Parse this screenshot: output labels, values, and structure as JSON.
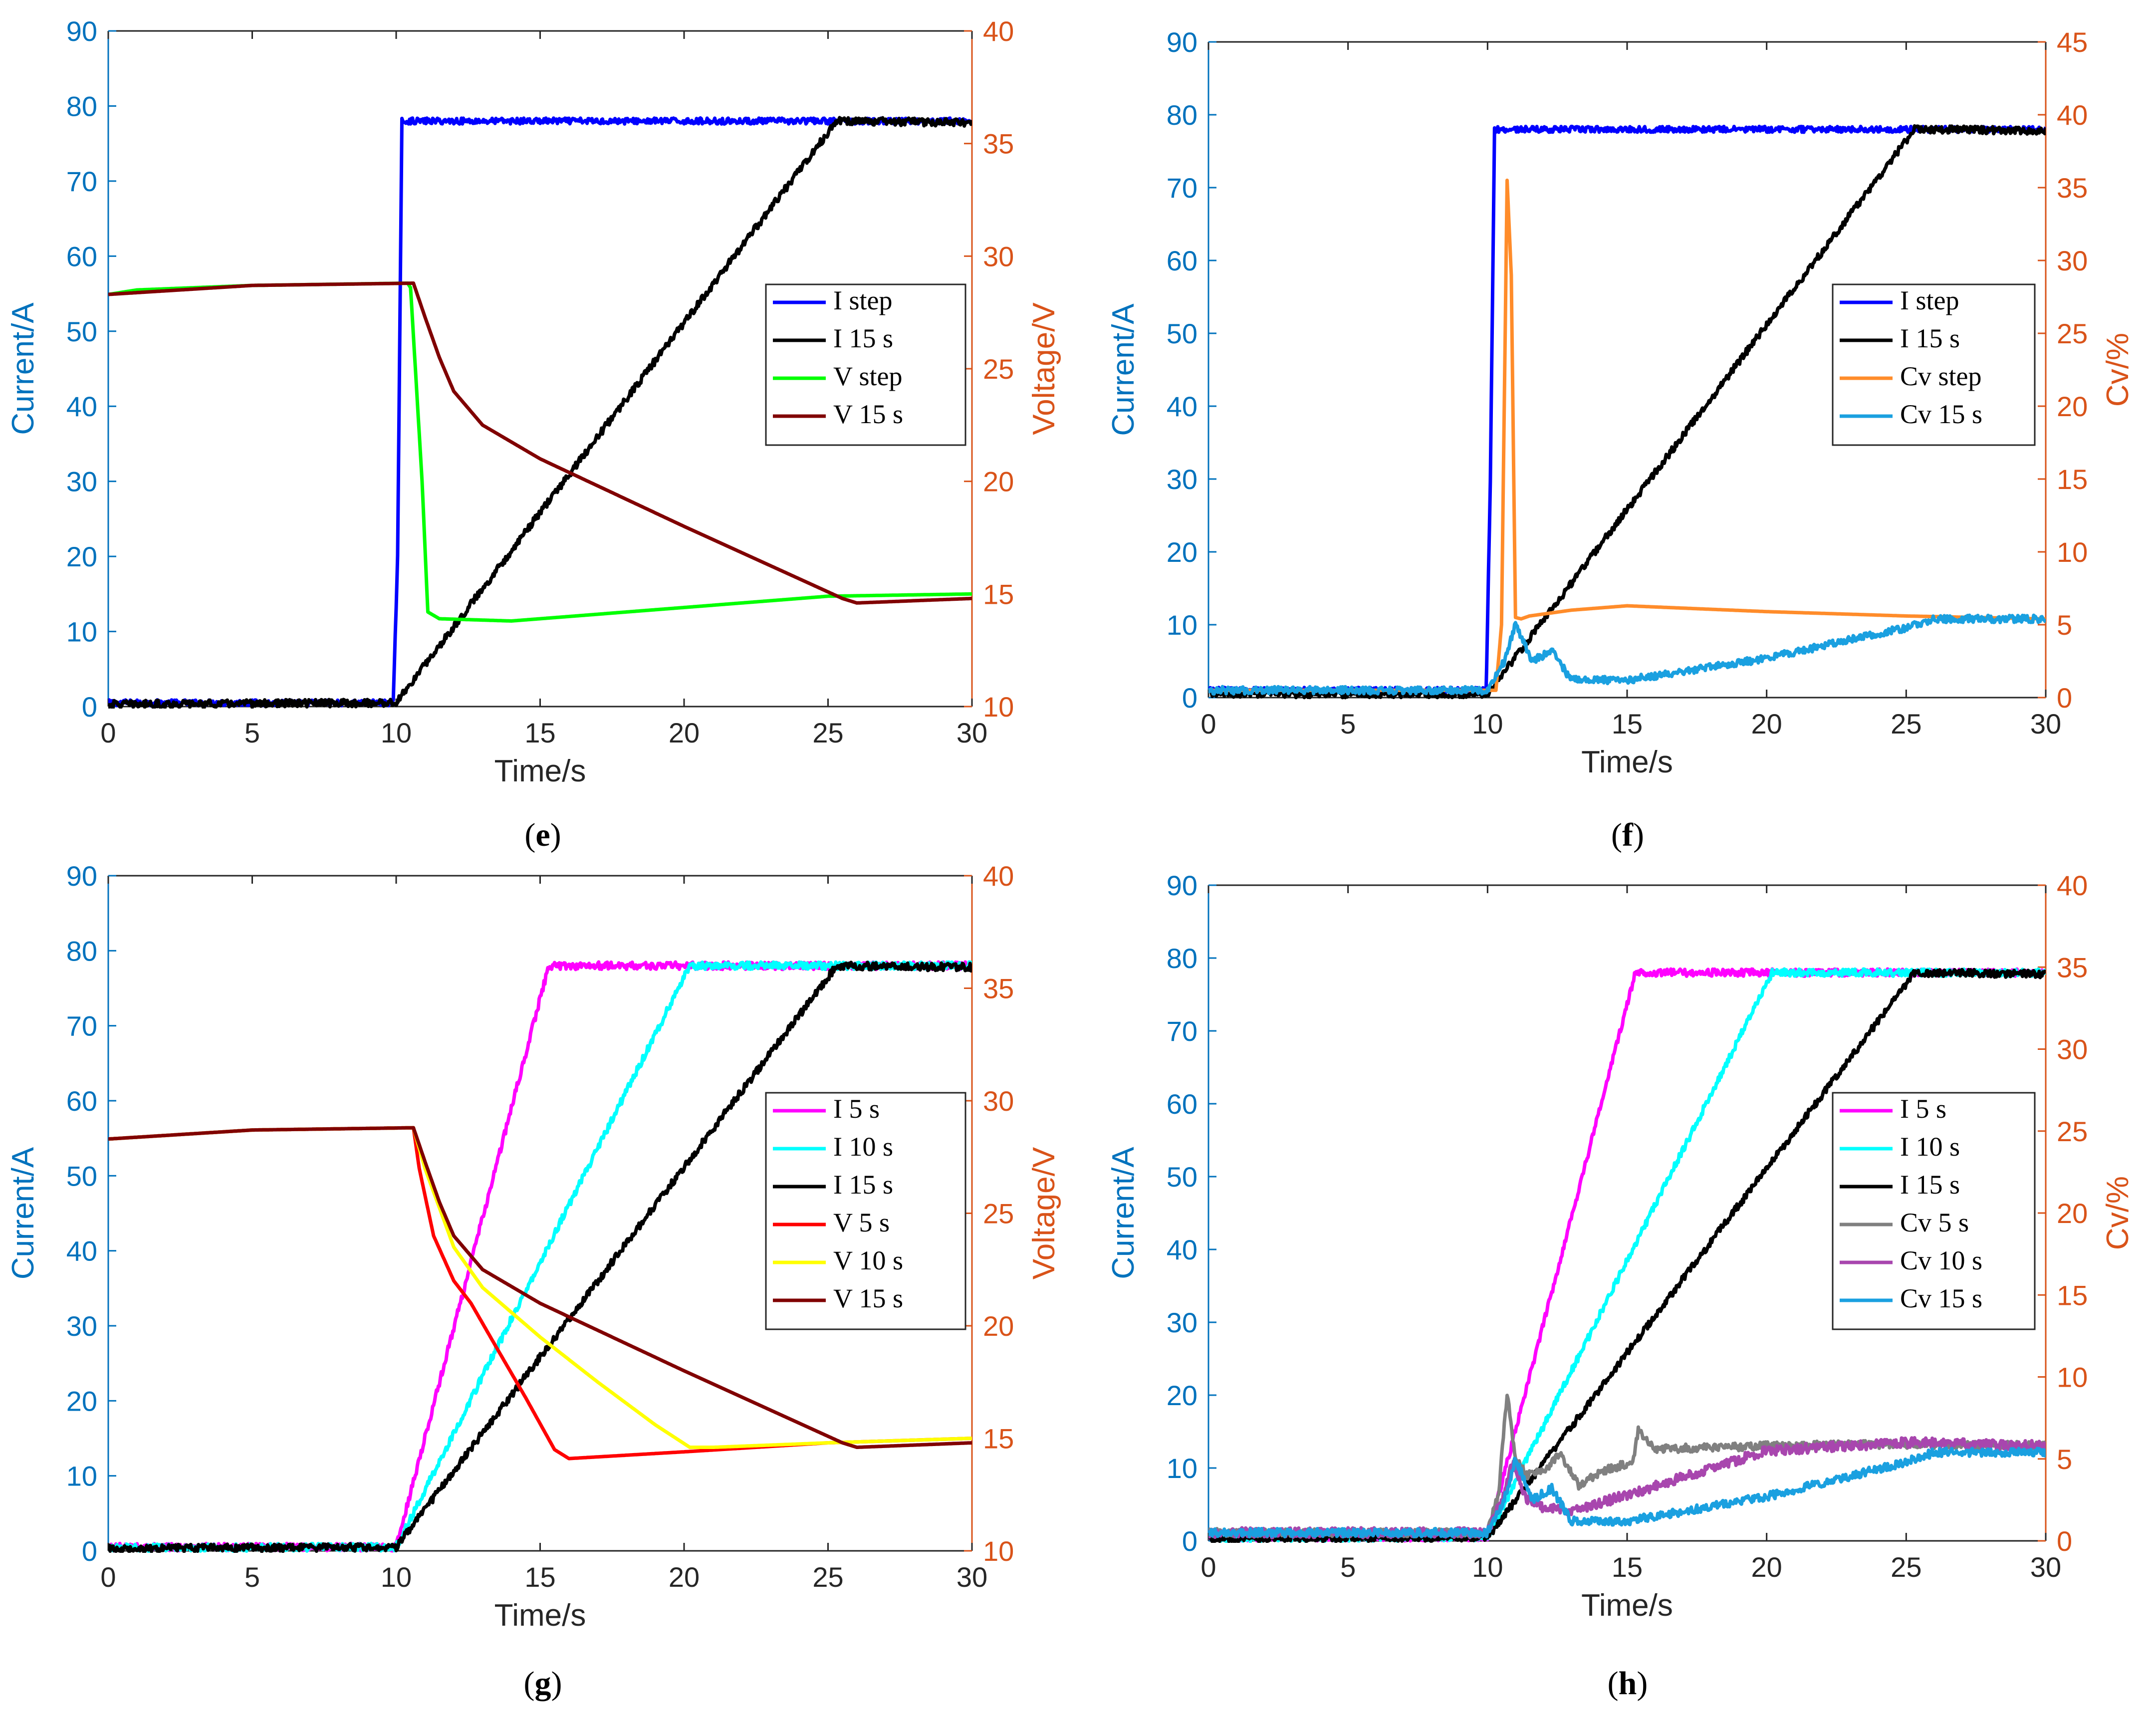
{
  "colors": {
    "left_axis": "#0072BD",
    "right_axis": "#D95319",
    "I_step": "#0000FF",
    "I_5s": "#FF00FF",
    "I_10s": "#00FFFF",
    "I_15s": "#000000",
    "V_step": "#00FF00",
    "V_5s": "#FF0000",
    "V_10s": "#FFFF00",
    "V_15s": "#800000",
    "Cv_step": "#FF8C2A",
    "Cv_5s": "#808080",
    "Cv_10s": "#A846AE",
    "Cv_15s": "#1AA0E0"
  },
  "chart_data": [
    {
      "id": "e",
      "type": "line",
      "panel_label": "e",
      "xlabel": "Time/s",
      "ylabel_left": "Current/A",
      "ylabel_right": "Voltage/V",
      "xlim": [
        0,
        30
      ],
      "ylim_left": [
        0,
        90
      ],
      "ylim_right": [
        10,
        40
      ],
      "xticks": [
        "0",
        "5",
        "10",
        "15",
        "20",
        "25",
        "30"
      ],
      "yticks_left": [
        "0",
        "10",
        "20",
        "30",
        "40",
        "50",
        "60",
        "70",
        "80",
        "90"
      ],
      "yticks_right": [
        "10",
        "15",
        "20",
        "25",
        "30",
        "35",
        "40"
      ],
      "series": [
        {
          "name": "I step",
          "axis": "left",
          "color_key": "I_step",
          "noise": 0.4,
          "x": [
            0,
            9.9,
            10.05,
            10.2,
            30
          ],
          "y": [
            0.5,
            0.5,
            20,
            78,
            78
          ]
        },
        {
          "name": "I 15 s",
          "axis": "left",
          "color_key": "I_15s",
          "noise": 0.5,
          "x": [
            0,
            10,
            25.3,
            30
          ],
          "y": [
            0.3,
            0.5,
            78,
            77.8
          ]
        },
        {
          "name": "V step",
          "axis": "right",
          "color_key": "V_step",
          "noise": 0,
          "x": [
            0,
            1,
            5,
            10.4,
            10.5,
            10.9,
            11.1,
            11.5,
            14,
            20,
            25,
            30
          ],
          "y": [
            28.3,
            28.5,
            28.7,
            28.8,
            28.6,
            20,
            14.2,
            13.9,
            13.8,
            14.4,
            14.9,
            15
          ]
        },
        {
          "name": "V 15 s",
          "axis": "right",
          "color_key": "V_15s",
          "noise": 0,
          "x": [
            0,
            5,
            10.6,
            11,
            11.5,
            12,
            13,
            15,
            20,
            25.5,
            26,
            30
          ],
          "y": [
            28.3,
            28.7,
            28.8,
            27.3,
            25.5,
            24,
            22.5,
            21,
            18,
            14.8,
            14.6,
            14.8
          ]
        }
      ]
    },
    {
      "id": "f",
      "type": "line",
      "panel_label": "f",
      "xlabel": "Time/s",
      "ylabel_left": "Current/A",
      "ylabel_right": "Cv/%",
      "xlim": [
        0,
        30
      ],
      "ylim_left": [
        0,
        90
      ],
      "ylim_right": [
        0,
        45
      ],
      "xticks": [
        "0",
        "5",
        "10",
        "15",
        "20",
        "25",
        "30"
      ],
      "yticks_left": [
        "0",
        "10",
        "20",
        "30",
        "40",
        "50",
        "60",
        "70",
        "80",
        "90"
      ],
      "yticks_right": [
        "0",
        "5",
        "10",
        "15",
        "20",
        "25",
        "30",
        "35",
        "40",
        "45"
      ],
      "series": [
        {
          "name": "I step",
          "axis": "left",
          "color_key": "I_step",
          "noise": 0.4,
          "x": [
            0,
            9.95,
            10.1,
            10.25,
            30
          ],
          "y": [
            1,
            1,
            30,
            78,
            78
          ]
        },
        {
          "name": "I 15 s",
          "axis": "left",
          "color_key": "I_15s",
          "noise": 0.5,
          "x": [
            0,
            10,
            25.3,
            30
          ],
          "y": [
            0.5,
            0.5,
            78,
            77.8
          ]
        },
        {
          "name": "Cv step",
          "axis": "right",
          "color_key": "Cv_step",
          "noise": 0,
          "x": [
            0,
            10.3,
            10.5,
            10.7,
            10.85,
            11,
            11.2,
            11.5,
            13,
            15,
            20,
            25,
            30
          ],
          "y": [
            0.5,
            0.5,
            5,
            35.5,
            29,
            5.5,
            5.4,
            5.6,
            6,
            6.3,
            5.9,
            5.6,
            5.4
          ]
        },
        {
          "name": "Cv 15 s",
          "axis": "right",
          "color_key": "Cv_15s",
          "noise": 0.25,
          "x": [
            0,
            10,
            10.6,
            11,
            11.6,
            12.3,
            13,
            15,
            20,
            25,
            26,
            30
          ],
          "y": [
            0.5,
            0.5,
            2.5,
            5,
            2.5,
            3.2,
            1.2,
            1.2,
            2.7,
            4.8,
            5.4,
            5.4
          ]
        }
      ]
    },
    {
      "id": "g",
      "type": "line",
      "panel_label": "g",
      "xlabel": "Time/s",
      "ylabel_left": "Current/A",
      "ylabel_right": "Voltage/V",
      "xlim": [
        0,
        30
      ],
      "ylim_left": [
        0,
        90
      ],
      "ylim_right": [
        10,
        40
      ],
      "xticks": [
        "0",
        "5",
        "10",
        "15",
        "20",
        "25",
        "30"
      ],
      "yticks_left": [
        "0",
        "10",
        "20",
        "30",
        "40",
        "50",
        "60",
        "70",
        "80",
        "90"
      ],
      "yticks_right": [
        "10",
        "15",
        "20",
        "25",
        "30",
        "35",
        "40"
      ],
      "series": [
        {
          "name": "I 5 s",
          "axis": "left",
          "color_key": "I_5s",
          "noise": 0.5,
          "x": [
            0,
            10,
            15.3,
            30
          ],
          "y": [
            0.5,
            0.5,
            78,
            78
          ]
        },
        {
          "name": "I 10 s",
          "axis": "left",
          "color_key": "I_10s",
          "noise": 0.5,
          "x": [
            0,
            10,
            20.2,
            30
          ],
          "y": [
            0.4,
            0.5,
            78,
            78
          ]
        },
        {
          "name": "I 15 s",
          "axis": "left",
          "color_key": "I_15s",
          "noise": 0.5,
          "x": [
            0,
            10,
            25.3,
            30
          ],
          "y": [
            0.3,
            0.5,
            78,
            77.8
          ]
        },
        {
          "name": "V 5 s",
          "axis": "right",
          "color_key": "V_5s",
          "noise": 0,
          "x": [
            0,
            5,
            10.6,
            10.8,
            11.3,
            12,
            12.6,
            13.5,
            14.5,
            15.5,
            16,
            20,
            25,
            30
          ],
          "y": [
            28.3,
            28.7,
            28.8,
            27,
            24,
            22,
            21,
            19,
            16.8,
            14.5,
            14.1,
            14.4,
            14.8,
            15
          ]
        },
        {
          "name": "V 10 s",
          "axis": "right",
          "color_key": "V_10s",
          "noise": 0,
          "x": [
            0,
            5,
            10.6,
            11,
            12,
            13,
            15,
            17,
            19,
            20.2,
            21,
            25,
            30
          ],
          "y": [
            28.3,
            28.7,
            28.8,
            27,
            23.5,
            21.7,
            19.5,
            17.5,
            15.6,
            14.6,
            14.6,
            14.8,
            15
          ]
        },
        {
          "name": "V 15 s",
          "axis": "right",
          "color_key": "V_15s",
          "noise": 0,
          "x": [
            0,
            5,
            10.6,
            11,
            11.5,
            12,
            13,
            15,
            20,
            25.5,
            26,
            30
          ],
          "y": [
            28.3,
            28.7,
            28.8,
            27.3,
            25.5,
            24,
            22.5,
            21,
            18,
            14.8,
            14.6,
            14.8
          ]
        }
      ]
    },
    {
      "id": "h",
      "type": "line",
      "panel_label": "h",
      "xlabel": "Time/s",
      "ylabel_left": "Current/A",
      "ylabel_right": "Cv/%",
      "xlim": [
        0,
        30
      ],
      "ylim_left": [
        0,
        90
      ],
      "ylim_right": [
        0,
        40
      ],
      "xticks": [
        "0",
        "5",
        "10",
        "15",
        "20",
        "25",
        "30"
      ],
      "yticks_left": [
        "0",
        "10",
        "20",
        "30",
        "40",
        "50",
        "60",
        "70",
        "80",
        "90"
      ],
      "yticks_right": [
        "0",
        "5",
        "10",
        "15",
        "20",
        "25",
        "30",
        "35",
        "40"
      ],
      "series": [
        {
          "name": "I 5 s",
          "axis": "left",
          "color_key": "I_5s",
          "noise": 0.5,
          "x": [
            0,
            10,
            15.3,
            30
          ],
          "y": [
            0.5,
            0.5,
            78,
            78
          ]
        },
        {
          "name": "I 10 s",
          "axis": "left",
          "color_key": "I_10s",
          "noise": 0.5,
          "x": [
            0,
            10,
            20.2,
            30
          ],
          "y": [
            0.4,
            0.5,
            78,
            78
          ]
        },
        {
          "name": "I 15 s",
          "axis": "left",
          "color_key": "I_15s",
          "noise": 0.5,
          "x": [
            0,
            10,
            25.3,
            30
          ],
          "y": [
            0.3,
            0.5,
            78,
            77.8
          ]
        },
        {
          "name": "Cv 5 s",
          "axis": "right",
          "color_key": "Cv_5s",
          "noise": 0.25,
          "x": [
            0,
            10,
            10.4,
            10.7,
            11,
            11.4,
            12,
            12.6,
            13.3,
            14,
            15.2,
            15.4,
            16,
            20,
            25,
            30
          ],
          "y": [
            0.5,
            0.5,
            3,
            9,
            5,
            4,
            4.2,
            5.3,
            3.3,
            4.2,
            4.8,
            6.7,
            5.6,
            5.8,
            5.9,
            5.8
          ]
        },
        {
          "name": "Cv 10 s",
          "axis": "right",
          "color_key": "Cv_10s",
          "noise": 0.3,
          "x": [
            0,
            10,
            10.5,
            10.9,
            11.4,
            12,
            13,
            15,
            20,
            25,
            30
          ],
          "y": [
            0.5,
            0.5,
            2.5,
            4.8,
            2.5,
            2,
            1.8,
            2.8,
            5.5,
            6,
            5.8
          ]
        },
        {
          "name": "Cv 15 s",
          "axis": "right",
          "color_key": "Cv_15s",
          "noise": 0.25,
          "x": [
            0,
            10,
            10.6,
            11,
            11.6,
            12.3,
            13,
            15,
            20,
            25,
            26,
            30
          ],
          "y": [
            0.5,
            0.5,
            2.5,
            5,
            2.5,
            3.2,
            1.2,
            1.2,
            2.7,
            4.8,
            5.4,
            5.4
          ]
        }
      ]
    }
  ]
}
